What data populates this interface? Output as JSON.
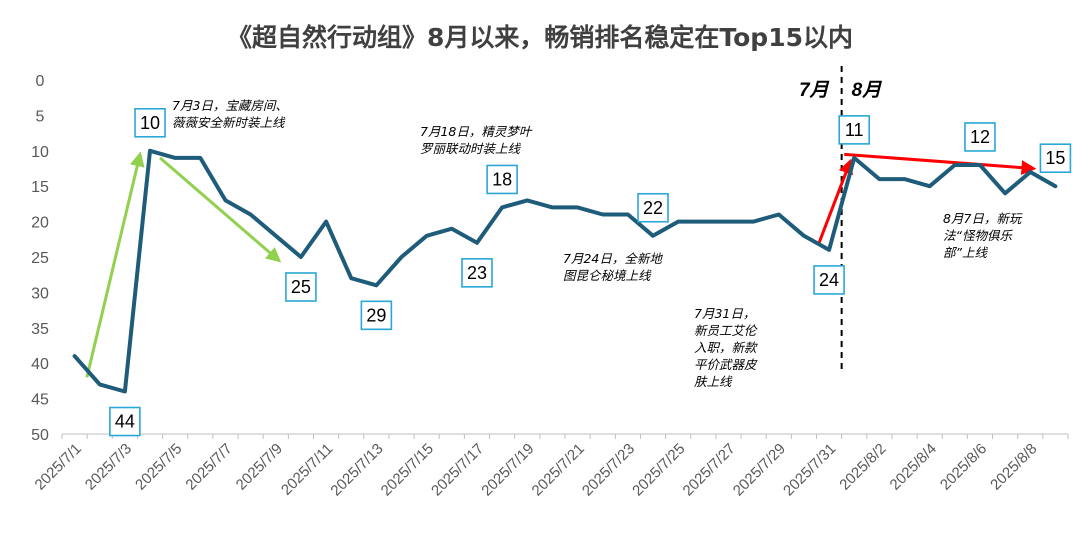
{
  "chart_data": {
    "type": "line",
    "title": "《超自然行动组》8月以来，畅销排名稳定在Top15以内",
    "xlabel": "",
    "ylabel": "",
    "y_axis_reversed": true,
    "ylim": [
      0,
      50
    ],
    "yticks": [
      "0",
      "5",
      "10",
      "15",
      "20",
      "25",
      "30",
      "35",
      "40",
      "45",
      "50"
    ],
    "line_color": "#1f5c7a",
    "label_box_color": "#2aa7d6",
    "x_tick_labels": [
      "2025/7/1",
      "2025/7/3",
      "2025/7/5",
      "2025/7/7",
      "2025/7/9",
      "2025/7/11",
      "2025/7/13",
      "2025/7/15",
      "2025/7/17",
      "2025/7/19",
      "2025/7/21",
      "2025/7/23",
      "2025/7/25",
      "2025/7/27",
      "2025/7/29",
      "2025/7/31",
      "2025/8/2",
      "2025/8/4",
      "2025/8/6",
      "2025/8/8"
    ],
    "x": [
      "2025/7/1",
      "2025/7/2",
      "2025/7/3",
      "2025/7/4",
      "2025/7/5",
      "2025/7/6",
      "2025/7/7",
      "2025/7/8",
      "2025/7/9",
      "2025/7/10",
      "2025/7/11",
      "2025/7/12",
      "2025/7/13",
      "2025/7/14",
      "2025/7/15",
      "2025/7/16",
      "2025/7/17",
      "2025/7/18",
      "2025/7/19",
      "2025/7/20",
      "2025/7/21",
      "2025/7/22",
      "2025/7/23",
      "2025/7/24",
      "2025/7/25",
      "2025/7/26",
      "2025/7/27",
      "2025/7/28",
      "2025/7/29",
      "2025/7/30",
      "2025/7/31",
      "2025/8/1",
      "2025/8/2",
      "2025/8/3",
      "2025/8/4",
      "2025/8/5",
      "2025/8/6",
      "2025/8/7",
      "2025/8/8",
      "2025/8/9"
    ],
    "values": [
      39,
      43,
      44,
      10,
      11,
      11,
      17,
      19,
      22,
      25,
      20,
      28,
      29,
      25,
      22,
      21,
      23,
      18,
      17,
      18,
      18,
      19,
      19,
      22,
      20,
      20,
      20,
      20,
      19,
      22,
      24,
      11,
      14,
      14,
      15,
      12,
      12,
      16,
      13,
      15
    ],
    "point_labels": [
      {
        "date": "2025/7/3",
        "value": 44,
        "text": "44",
        "pos": "below"
      },
      {
        "date": "2025/7/4",
        "value": 10,
        "text": "10",
        "pos": "above"
      },
      {
        "date": "2025/7/10",
        "value": 25,
        "text": "25",
        "pos": "below"
      },
      {
        "date": "2025/7/13",
        "value": 29,
        "text": "29",
        "pos": "below"
      },
      {
        "date": "2025/7/17",
        "value": 23,
        "text": "23",
        "pos": "below"
      },
      {
        "date": "2025/7/18",
        "value": 18,
        "text": "18",
        "pos": "above"
      },
      {
        "date": "2025/7/24",
        "value": 22,
        "text": "22",
        "pos": "above"
      },
      {
        "date": "2025/7/31",
        "value": 24,
        "text": "24",
        "pos": "below"
      },
      {
        "date": "2025/8/1",
        "value": 11,
        "text": "11",
        "pos": "above"
      },
      {
        "date": "2025/8/6",
        "value": 12,
        "text": "12",
        "pos": "above"
      },
      {
        "date": "2025/8/9",
        "value": 15,
        "text": "15",
        "pos": "above"
      }
    ],
    "annotations": [
      {
        "name": "annotation-jul3",
        "lines": [
          "7月3日，宝藏房间、",
          "薇薇安全新时装上线"
        ]
      },
      {
        "name": "annotation-jul18",
        "lines": [
          "7月18日，精灵梦叶",
          "罗丽联动时装上线"
        ]
      },
      {
        "name": "annotation-jul24",
        "lines": [
          "7月24日，全新地",
          "图昆仑秘境上线"
        ]
      },
      {
        "name": "annotation-jul31",
        "lines": [
          "7月31日，",
          "新员工艾伦",
          "入职，新款",
          "平价武器皮",
          "肤上线"
        ]
      },
      {
        "name": "annotation-aug7",
        "lines": [
          "8月7日，新玩",
          "法“怪物俱乐",
          "部”上线"
        ]
      }
    ],
    "month_labels": [
      "7月",
      "8月"
    ],
    "trend_arrows": [
      {
        "from": [
          "2025/7/3",
          42
        ],
        "to": [
          "2025/7/4",
          10.5
        ],
        "color": "#92d050"
      },
      {
        "from": [
          "2025/7/4",
          11
        ],
        "to": [
          "2025/7/10",
          25.5
        ],
        "color": "#92d050"
      },
      {
        "from": [
          "2025/7/31",
          23
        ],
        "to": [
          "2025/8/1",
          11.5
        ],
        "color": "#ff0000"
      },
      {
        "from": [
          "2025/8/1",
          10.5
        ],
        "to": [
          "2025/8/9",
          12.5
        ],
        "color": "#ff0000"
      }
    ]
  }
}
